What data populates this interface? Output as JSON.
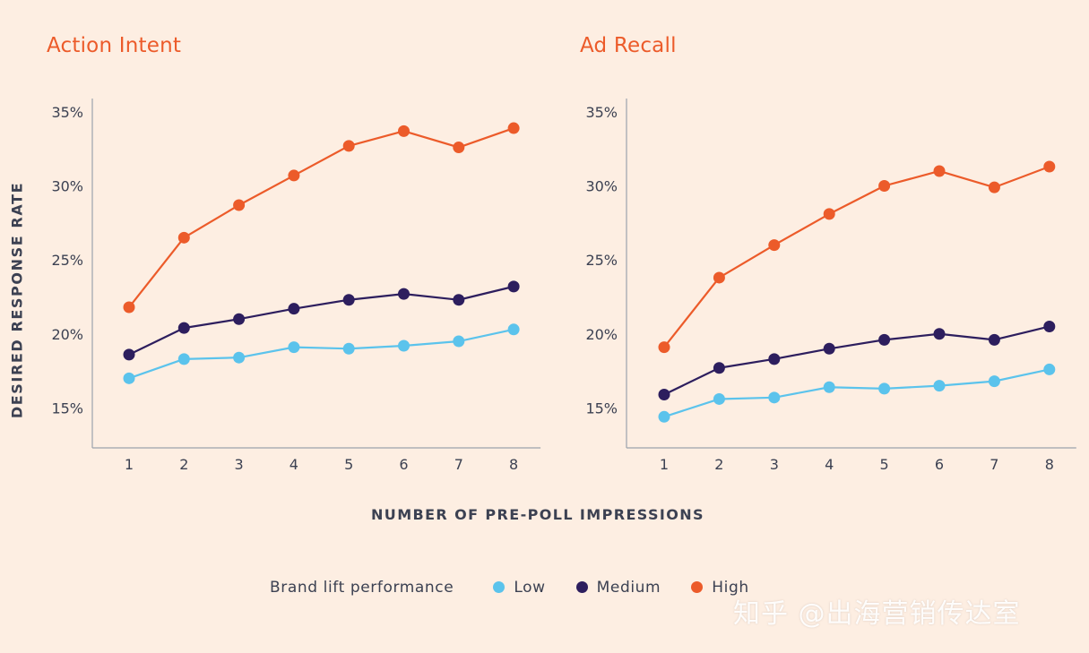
{
  "ylabel": "DESIRED RESPONSE RATE",
  "xlabel": "NUMBER OF PRE-POLL IMPRESSIONS",
  "legend": {
    "title": "Brand lift performance",
    "items": [
      {
        "label": "Low",
        "color": "#5bc3ec"
      },
      {
        "label": "Medium",
        "color": "#2d1e5e"
      },
      {
        "label": "High",
        "color": "#ec5b2a"
      }
    ]
  },
  "watermark": "知乎 @出海营销传达室",
  "chart_data": [
    {
      "type": "line",
      "title": "Action Intent",
      "xlabel": "NUMBER OF PRE-POLL IMPRESSIONS",
      "ylabel": "DESIRED RESPONSE RATE",
      "x": [
        1,
        2,
        3,
        4,
        5,
        6,
        7,
        8
      ],
      "yticks": [
        "15%",
        "20%",
        "25%",
        "30%",
        "35%"
      ],
      "ylim": [
        12.3,
        35.9
      ],
      "grid": false,
      "series": [
        {
          "name": "Low",
          "color": "#5bc3ec",
          "values": [
            17.0,
            18.3,
            18.4,
            19.1,
            19.0,
            19.2,
            19.5,
            20.3
          ]
        },
        {
          "name": "Medium",
          "color": "#2d1e5e",
          "values": [
            18.6,
            20.4,
            21.0,
            21.7,
            22.3,
            22.7,
            22.3,
            23.2
          ]
        },
        {
          "name": "High",
          "color": "#ec5b2a",
          "values": [
            21.8,
            26.5,
            28.7,
            30.7,
            32.7,
            33.7,
            32.6,
            33.9
          ]
        }
      ]
    },
    {
      "type": "line",
      "title": "Ad Recall",
      "xlabel": "NUMBER OF PRE-POLL IMPRESSIONS",
      "ylabel": "DESIRED RESPONSE RATE",
      "x": [
        1,
        2,
        3,
        4,
        5,
        6,
        7,
        8
      ],
      "yticks": [
        "15%",
        "20%",
        "25%",
        "30%",
        "35%"
      ],
      "ylim": [
        12.3,
        35.9
      ],
      "grid": false,
      "series": [
        {
          "name": "Low",
          "color": "#5bc3ec",
          "values": [
            14.4,
            15.6,
            15.7,
            16.4,
            16.3,
            16.5,
            16.8,
            17.6
          ]
        },
        {
          "name": "Medium",
          "color": "#2d1e5e",
          "values": [
            15.9,
            17.7,
            18.3,
            19.0,
            19.6,
            20.0,
            19.6,
            20.5
          ]
        },
        {
          "name": "High",
          "color": "#ec5b2a",
          "values": [
            19.1,
            23.8,
            26.0,
            28.1,
            30.0,
            31.0,
            29.9,
            31.3
          ]
        }
      ]
    }
  ]
}
